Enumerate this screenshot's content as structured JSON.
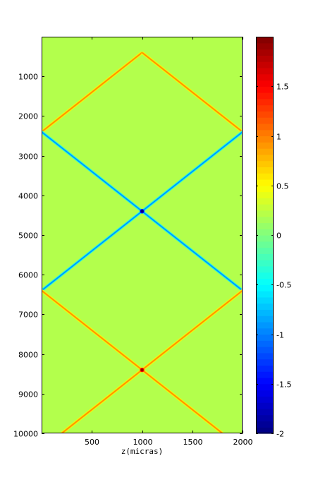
{
  "chart_data": {
    "type": "heatmap",
    "title": "",
    "xlabel": "z(micras)",
    "ylabel": "",
    "xlim": [
      0,
      2000
    ],
    "ylim": [
      10000,
      0
    ],
    "x_ticks": [
      500,
      1000,
      1500,
      2000
    ],
    "y_ticks": [
      1000,
      2000,
      3000,
      4000,
      5000,
      6000,
      7000,
      8000,
      9000,
      10000
    ],
    "colorbar": {
      "colormap": "jet",
      "range": [
        -2,
        2
      ],
      "ticks": [
        -2,
        -1.5,
        -1,
        -0.5,
        0,
        0.5,
        1,
        1.5
      ],
      "tick_labels": [
        "-2",
        "-1.5",
        "-1",
        "-0.5",
        "0",
        "0.5",
        "1",
        "1.5"
      ]
    },
    "background_value": 0.2,
    "line_halfwidth": 35,
    "segments": [
      {
        "sign": 1,
        "x0": 0,
        "y0": 2400,
        "x1": 1000,
        "y1": 400,
        "amplitude": 0.95
      },
      {
        "sign": 1,
        "x0": 1000,
        "y0": 400,
        "x1": 2000,
        "y1": 2400,
        "amplitude": 0.95
      },
      {
        "sign": -1,
        "x0": 0,
        "y0": 2400,
        "x1": 2000,
        "y1": 6400,
        "amplitude": 0.95
      },
      {
        "sign": -1,
        "x0": 2000,
        "y0": 2400,
        "x1": 0,
        "y1": 6400,
        "amplitude": 0.95
      },
      {
        "sign": 1,
        "x0": 0,
        "y0": 6400,
        "x1": 1800,
        "y1": 10000,
        "amplitude": 0.95
      },
      {
        "sign": 1,
        "x0": 2000,
        "y0": 6400,
        "x1": 200,
        "y1": 10000,
        "amplitude": 0.95
      }
    ],
    "crossings": [
      {
        "x": 1000,
        "y": 4400,
        "value": -2
      },
      {
        "x": 1000,
        "y": 8400,
        "value": 1.9
      }
    ]
  }
}
